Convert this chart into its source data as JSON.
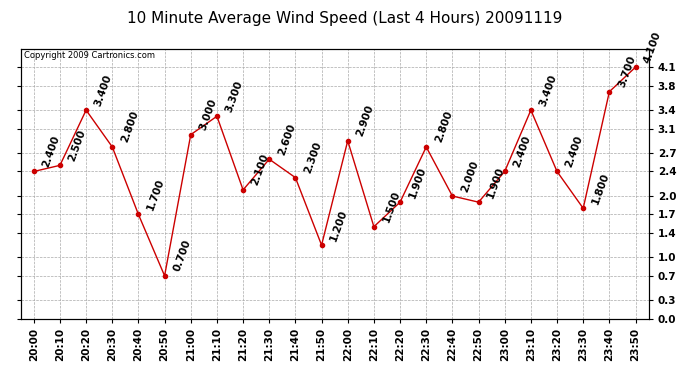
{
  "title": "10 Minute Average Wind Speed (Last 4 Hours) 20091119",
  "copyright": "Copyright 2009 Cartronics.com",
  "times": [
    "20:00",
    "20:10",
    "20:20",
    "20:30",
    "20:40",
    "20:50",
    "21:00",
    "21:10",
    "21:20",
    "21:30",
    "21:40",
    "21:50",
    "22:00",
    "22:10",
    "22:20",
    "22:30",
    "22:40",
    "22:50",
    "23:00",
    "23:10",
    "23:20",
    "23:30",
    "23:40",
    "23:50"
  ],
  "values": [
    2.4,
    2.5,
    3.4,
    2.8,
    1.7,
    0.7,
    3.0,
    3.3,
    2.1,
    2.6,
    2.3,
    1.2,
    2.9,
    1.5,
    1.9,
    2.8,
    2.0,
    1.9,
    2.4,
    3.4,
    2.4,
    1.8,
    3.7,
    4.1
  ],
  "line_color": "#cc0000",
  "marker_color": "#cc0000",
  "bg_color": "#ffffff",
  "plot_bg_color": "#ffffff",
  "grid_color": "#aaaaaa",
  "title_fontsize": 11,
  "ylim": [
    0.0,
    4.4
  ],
  "yticks_right": [
    0.0,
    0.3,
    0.7,
    1.0,
    1.4,
    1.7,
    2.0,
    2.4,
    2.7,
    3.1,
    3.4,
    3.8,
    4.1
  ],
  "ytick_labels_right": [
    "0.0",
    "0.3",
    "0.7",
    "1.0",
    "1.4",
    "1.7",
    "2.0",
    "2.4",
    "2.7",
    "3.1",
    "3.4",
    "3.8",
    "4.1"
  ],
  "label_fontsize": 7.5,
  "annotation_fontsize": 7.5,
  "copyright_fontsize": 6
}
